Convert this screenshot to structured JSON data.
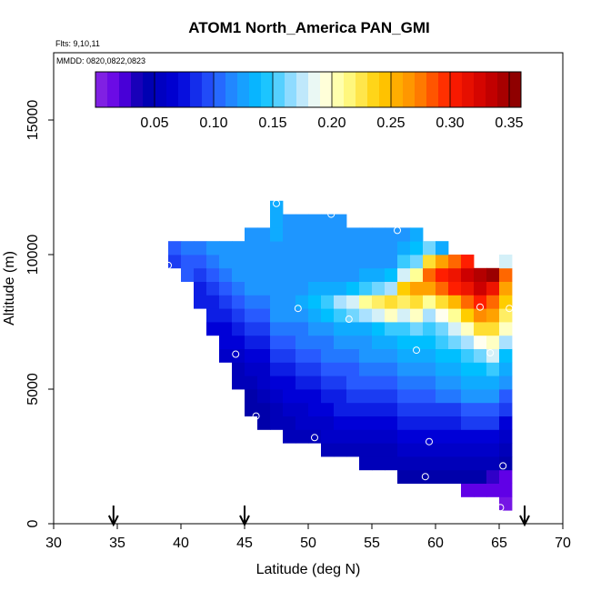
{
  "chart_data": {
    "type": "heatmap",
    "title": "ATOM1 North_America PAN_GMI",
    "flights_label": "Flts: 9,10,11",
    "dates_label": "MMDD: 0820,0822,0823",
    "xlabel": "Latitude (deg N)",
    "ylabel": "Altitude (m)",
    "xlim": [
      30,
      70
    ],
    "ylim": [
      0,
      17500
    ],
    "x_ticks": [
      30,
      35,
      40,
      45,
      50,
      55,
      60,
      65,
      70
    ],
    "x_tick_labels": [
      "30",
      "35",
      "40",
      "45",
      "50",
      "55",
      "60",
      "65",
      "70"
    ],
    "y_ticks": [
      0,
      5000,
      10000,
      15000
    ],
    "y_tick_labels": [
      "0",
      "5000",
      "10000",
      "15000"
    ],
    "colorbar": {
      "range": [
        0.0,
        0.36
      ],
      "ticks": [
        0.05,
        0.1,
        0.15,
        0.2,
        0.25,
        0.3,
        0.35
      ],
      "tick_labels": [
        "0.05",
        "0.10",
        "0.15",
        "0.20",
        "0.25",
        "0.30",
        "0.35"
      ]
    },
    "cell_size": {
      "lat": 1.0,
      "alt": 500
    },
    "columns": [
      {
        "lat": 39,
        "base_alt": 9500,
        "values": [
          0.09,
          0.1
        ]
      },
      {
        "lat": 40,
        "base_alt": 9000,
        "values": [
          0.1,
          0.1,
          0.11
        ]
      },
      {
        "lat": 41,
        "base_alt": 8000,
        "values": [
          0.08,
          0.08,
          0.09,
          0.1,
          0.11
        ]
      },
      {
        "lat": 42,
        "base_alt": 7000,
        "values": [
          0.07,
          0.08,
          0.08,
          0.09,
          0.1,
          0.11,
          0.12
        ]
      },
      {
        "lat": 43,
        "base_alt": 6000,
        "values": [
          0.06,
          0.07,
          0.07,
          0.08,
          0.09,
          0.1,
          0.11,
          0.12,
          0.12
        ]
      },
      {
        "lat": 44,
        "base_alt": 5000,
        "values": [
          0.05,
          0.05,
          0.06,
          0.07,
          0.08,
          0.09,
          0.1,
          0.11,
          0.12,
          0.12,
          0.12
        ]
      },
      {
        "lat": 45,
        "base_alt": 4000,
        "values": [
          0.04,
          0.04,
          0.05,
          0.06,
          0.07,
          0.08,
          0.09,
          0.1,
          0.11,
          0.12,
          0.12,
          0.12,
          0.12,
          0.12
        ]
      },
      {
        "lat": 46,
        "base_alt": 3500,
        "values": [
          0.04,
          0.04,
          0.05,
          0.06,
          0.06,
          0.07,
          0.08,
          0.09,
          0.1,
          0.11,
          0.12,
          0.12,
          0.12,
          0.12,
          0.12
        ]
      },
      {
        "lat": 47,
        "base_alt": 3500,
        "values": [
          0.05,
          0.05,
          0.06,
          0.07,
          0.08,
          0.09,
          0.1,
          0.11,
          0.12,
          0.12,
          0.12,
          0.12,
          0.12,
          0.12,
          0.13,
          0.13,
          0.13
        ]
      },
      {
        "lat": 48,
        "base_alt": 3000,
        "values": [
          0.05,
          0.05,
          0.06,
          0.07,
          0.07,
          0.08,
          0.09,
          0.1,
          0.11,
          0.12,
          0.12,
          0.12,
          0.12,
          0.12,
          0.12,
          0.12,
          0.12
        ]
      },
      {
        "lat": 49,
        "base_alt": 3000,
        "values": [
          0.05,
          0.06,
          0.06,
          0.07,
          0.08,
          0.09,
          0.1,
          0.11,
          0.11,
          0.12,
          0.13,
          0.12,
          0.12,
          0.12,
          0.12,
          0.12,
          0.12
        ]
      },
      {
        "lat": 50,
        "base_alt": 3000,
        "values": [
          0.05,
          0.06,
          0.07,
          0.07,
          0.08,
          0.09,
          0.1,
          0.11,
          0.12,
          0.13,
          0.14,
          0.13,
          0.12,
          0.12,
          0.12,
          0.12,
          0.12
        ]
      },
      {
        "lat": 51,
        "base_alt": 2500,
        "values": [
          0.05,
          0.06,
          0.06,
          0.07,
          0.08,
          0.09,
          0.1,
          0.11,
          0.11,
          0.12,
          0.14,
          0.15,
          0.13,
          0.12,
          0.12,
          0.12,
          0.12,
          0.12
        ]
      },
      {
        "lat": 52,
        "base_alt": 2500,
        "values": [
          0.05,
          0.06,
          0.07,
          0.08,
          0.08,
          0.09,
          0.1,
          0.11,
          0.12,
          0.13,
          0.15,
          0.17,
          0.13,
          0.12,
          0.12,
          0.12,
          0.12,
          0.12
        ]
      },
      {
        "lat": 53,
        "base_alt": 2500,
        "values": [
          0.05,
          0.06,
          0.07,
          0.08,
          0.09,
          0.1,
          0.1,
          0.11,
          0.12,
          0.13,
          0.16,
          0.18,
          0.14,
          0.12,
          0.12,
          0.12,
          0.12
        ]
      },
      {
        "lat": 54,
        "base_alt": 2000,
        "values": [
          0.05,
          0.05,
          0.06,
          0.07,
          0.08,
          0.09,
          0.1,
          0.11,
          0.12,
          0.12,
          0.13,
          0.17,
          0.21,
          0.15,
          0.13,
          0.12,
          0.12,
          0.12
        ]
      },
      {
        "lat": 55,
        "base_alt": 2000,
        "values": [
          0.05,
          0.05,
          0.06,
          0.07,
          0.08,
          0.09,
          0.1,
          0.11,
          0.12,
          0.13,
          0.14,
          0.18,
          0.22,
          0.16,
          0.13,
          0.12,
          0.12,
          0.12
        ]
      },
      {
        "lat": 56,
        "base_alt": 2000,
        "values": [
          0.05,
          0.05,
          0.06,
          0.07,
          0.08,
          0.09,
          0.1,
          0.11,
          0.12,
          0.13,
          0.15,
          0.2,
          0.23,
          0.17,
          0.14,
          0.12,
          0.12,
          0.12
        ]
      },
      {
        "lat": 57,
        "base_alt": 1500,
        "values": [
          0.04,
          0.05,
          0.06,
          0.07,
          0.08,
          0.09,
          0.1,
          0.11,
          0.12,
          0.13,
          0.14,
          0.15,
          0.18,
          0.22,
          0.24,
          0.18,
          0.15,
          0.13,
          0.12
        ]
      },
      {
        "lat": 58,
        "base_alt": 1500,
        "values": [
          0.04,
          0.05,
          0.06,
          0.07,
          0.08,
          0.09,
          0.1,
          0.11,
          0.12,
          0.13,
          0.14,
          0.16,
          0.2,
          0.23,
          0.26,
          0.21,
          0.16,
          0.14,
          0.13
        ]
      },
      {
        "lat": 59,
        "base_alt": 1500,
        "values": [
          0.04,
          0.05,
          0.06,
          0.07,
          0.08,
          0.09,
          0.1,
          0.11,
          0.12,
          0.13,
          0.14,
          0.15,
          0.17,
          0.21,
          0.26,
          0.28,
          0.23,
          0.16
        ]
      },
      {
        "lat": 60,
        "base_alt": 1500,
        "values": [
          0.04,
          0.05,
          0.06,
          0.07,
          0.08,
          0.09,
          0.11,
          0.12,
          0.13,
          0.14,
          0.15,
          0.16,
          0.19,
          0.23,
          0.28,
          0.3,
          0.26,
          0.13
        ]
      },
      {
        "lat": 61,
        "base_alt": 1500,
        "values": [
          0.04,
          0.05,
          0.06,
          0.07,
          0.08,
          0.09,
          0.11,
          0.12,
          0.13,
          0.14,
          0.16,
          0.18,
          0.21,
          0.25,
          0.3,
          0.31,
          0.28
        ]
      },
      {
        "lat": 62,
        "base_alt": 1000,
        "values": [
          0.02,
          0.04,
          0.05,
          0.06,
          0.07,
          0.09,
          0.1,
          0.12,
          0.13,
          0.14,
          0.15,
          0.17,
          0.2,
          0.24,
          0.28,
          0.31,
          0.33,
          0.3
        ]
      },
      {
        "lat": 63,
        "base_alt": 1000,
        "values": [
          0.02,
          0.04,
          0.05,
          0.06,
          0.07,
          0.09,
          0.1,
          0.12,
          0.13,
          0.14,
          0.16,
          0.19,
          0.23,
          0.27,
          0.3,
          0.33,
          0.34
        ]
      },
      {
        "lat": 64,
        "base_alt": 1000,
        "values": [
          0.02,
          0.03,
          0.05,
          0.06,
          0.07,
          0.09,
          0.1,
          0.12,
          0.13,
          0.15,
          0.18,
          0.2,
          0.23,
          0.26,
          0.28,
          0.31,
          0.35
        ]
      },
      {
        "lat": 65,
        "base_alt": 500,
        "values": [
          0.01,
          0.02,
          0.02,
          0.04,
          0.05,
          0.06,
          0.07,
          0.09,
          0.1,
          0.12,
          0.13,
          0.14,
          0.17,
          0.2,
          0.22,
          0.24,
          0.26,
          0.28,
          0.18
        ]
      }
    ],
    "flight_points": [
      [
        47.5,
        11900
      ],
      [
        42.5,
        10850
      ],
      [
        51.8,
        11500
      ],
      [
        57.0,
        10900
      ],
      [
        39.0,
        9600
      ],
      [
        49.2,
        8000
      ],
      [
        53.2,
        7600
      ],
      [
        63.5,
        8050
      ],
      [
        65.8,
        8000
      ],
      [
        58.5,
        6450
      ],
      [
        64.3,
        6350
      ],
      [
        44.3,
        6300
      ],
      [
        45.9,
        4000
      ],
      [
        50.5,
        3200
      ],
      [
        59.5,
        3050
      ],
      [
        65.3,
        2150
      ],
      [
        59.2,
        1750
      ],
      [
        65.1,
        600
      ]
    ],
    "arrow_markers": [
      34.7,
      45.0,
      67.0
    ]
  }
}
